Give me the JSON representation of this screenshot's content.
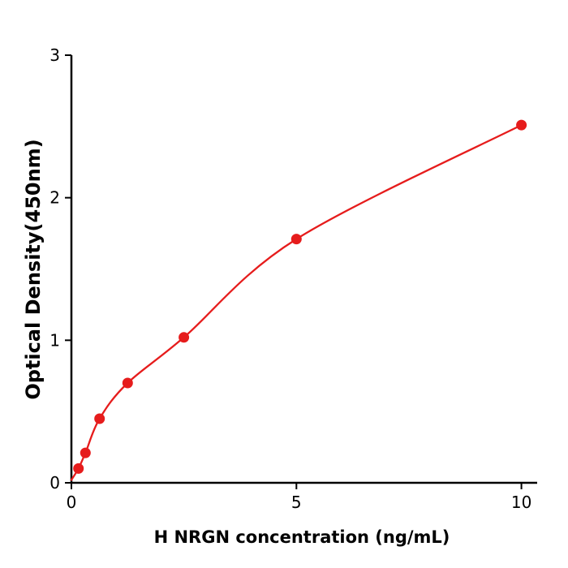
{
  "page": {
    "background": "#ffffff"
  },
  "chart_data": {
    "type": "scatter",
    "title": "",
    "xlabel": "H  NRGN concentration (ng/mL)",
    "ylabel": "Optical Density(450nm)",
    "x": [
      0.156,
      0.3125,
      0.625,
      1.25,
      2.5,
      5,
      10
    ],
    "y": [
      0.1,
      0.21,
      0.45,
      0.7,
      1.02,
      1.71,
      2.51
    ],
    "fit_curve": {
      "type": "smooth-through-points",
      "start_point": {
        "x": 0,
        "y": 0.02
      }
    },
    "xlim": [
      0,
      10.35
    ],
    "ylim": [
      0,
      3
    ],
    "xticks": [
      0,
      5,
      10
    ],
    "yticks": [
      0,
      1,
      2,
      3
    ],
    "grid": false,
    "legend": null,
    "point_color": "#e61c1c",
    "line_color": "#e61c1c",
    "axis_color": "#000000",
    "marker": "circle",
    "marker_radius_px": 6.5
  }
}
